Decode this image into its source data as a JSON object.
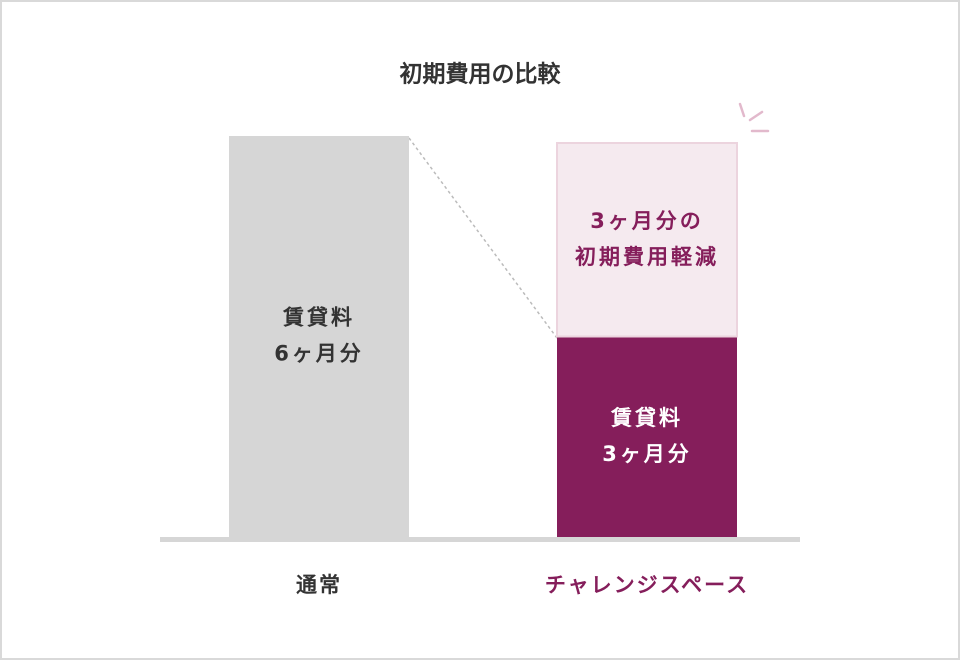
{
  "chart_data": {
    "type": "stacked-bar",
    "title": "初期費用の比較",
    "categories": [
      "通常",
      "チャレンジスペース"
    ],
    "category_colors": [
      "#333333",
      "#851e5b"
    ],
    "ylim": [
      0,
      6
    ],
    "series": [
      {
        "values": [
          6,
          3
        ],
        "colors": [
          "#d6d6d6",
          "#851e5b"
        ],
        "label_colors": [
          "#333333",
          "#ffffff"
        ],
        "value_labels": [
          [
            "賃貸料",
            "6ヶ月分"
          ],
          [
            "賃貸料",
            "3ヶ月分"
          ]
        ]
      },
      {
        "values": [
          null,
          3
        ],
        "colors": [
          null,
          "#f5eaef"
        ],
        "label_colors": [
          null,
          "#851e5b"
        ],
        "value_labels": [
          null,
          [
            "3ヶ月分の",
            "初期費用軽減"
          ]
        ]
      }
    ]
  }
}
